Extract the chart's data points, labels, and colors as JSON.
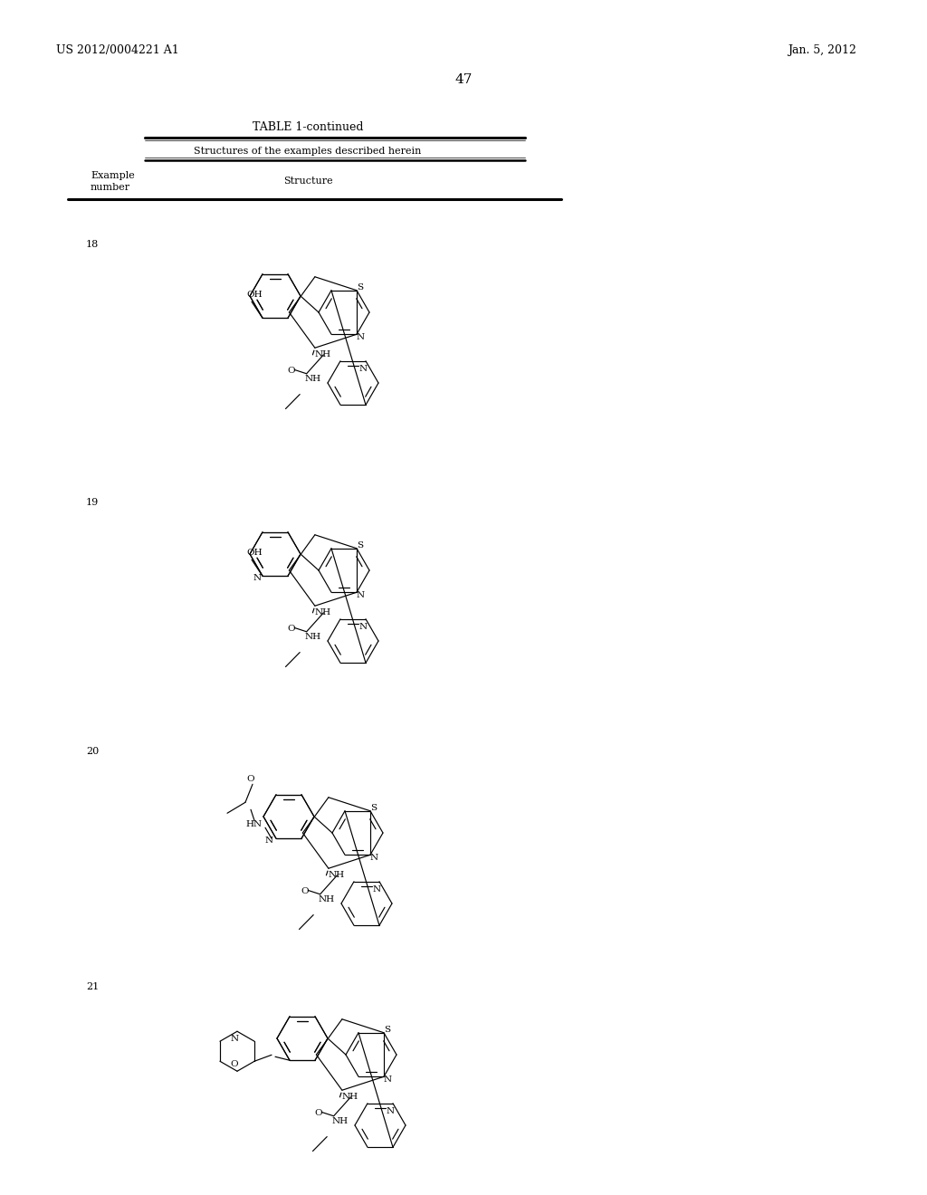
{
  "page_header_left": "US 2012/0004221 A1",
  "page_header_right": "Jan. 5, 2012",
  "page_number": "47",
  "table_title": "TABLE 1-continued",
  "table_subtitle": "Structures of the examples described herein",
  "col1_header_line1": "Example",
  "col1_header_line2": "number",
  "col2_header": "Structure",
  "background_color": "#ffffff",
  "text_color": "#000000"
}
